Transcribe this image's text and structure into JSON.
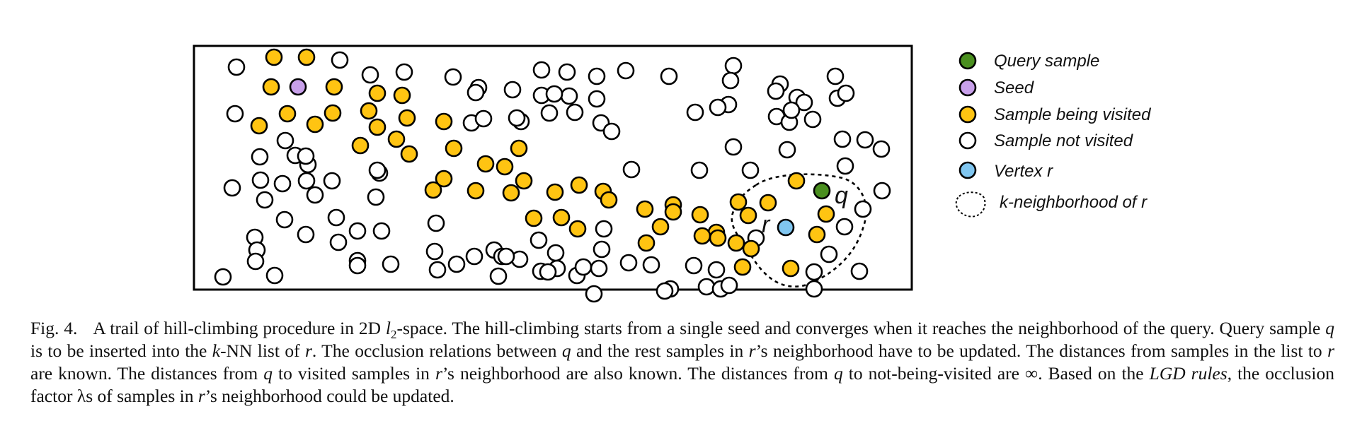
{
  "legend": {
    "items": [
      {
        "key": "query",
        "label": "Query sample",
        "color": "#4a8f1f"
      },
      {
        "key": "seed",
        "label": "Seed",
        "color": "#c8a0ea"
      },
      {
        "key": "visited",
        "label": "Sample being visited",
        "color": "#ffc412"
      },
      {
        "key": "not_visited",
        "label": "Sample not visited",
        "color": "#ffffff"
      },
      {
        "key": "vertex",
        "label": "Vertex r",
        "color": "#80c6f0"
      },
      {
        "key": "neighborhood",
        "label": "k-neighborhood of r",
        "color": "#000000"
      }
    ]
  },
  "figure": {
    "q_label": "q",
    "r_label": "r"
  },
  "caption": {
    "fig_label": "Fig. 4.",
    "t1": "A trail of hill-climbing procedure in 2D ",
    "l_sym": "l",
    "l_sub": "2",
    "t2": "-space. The hill-climbing starts from a single seed and converges when it reaches the neighborhood of the query. Query sample ",
    "q1": "q",
    "t3": " is to be inserted into the ",
    "k1": "k",
    "t4": "-NN list of ",
    "r1": "r",
    "t5": ". The occlusion relations between ",
    "q2": "q",
    "t6": " and the rest samples in ",
    "r2": "r",
    "t7": "’s neighborhood have to be updated. The distances from samples in the list to ",
    "r3": "r",
    "t8": " are known. The distances from ",
    "q3": "q",
    "t9": " to visited samples in ",
    "r4": "r",
    "t10": "’s neighborhood are also known. The distances from ",
    "q4": "q",
    "t11": " to not-being-visited are ∞. Based on the ",
    "lgd": "LGD rules",
    "t12": ", the occlusion factor λs of samples in ",
    "r5": "r",
    "t13": "’s neighborhood could be updated."
  }
}
